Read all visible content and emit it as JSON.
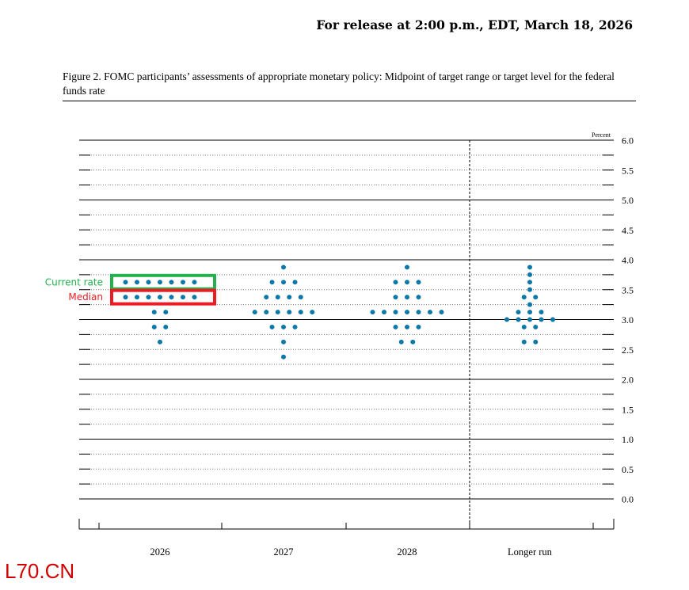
{
  "header": {
    "release": "For release at 2:00 p.m., EDT, March 18, 2026"
  },
  "caption": "Figure 2. FOMC participants’ assessments of appropriate monetary policy: Midpoint of target range or target level for the federal funds rate",
  "watermark": "L70.CN",
  "annotations": {
    "current_rate": {
      "label": "Current rate",
      "color": "#22b14c",
      "value": 3.625
    },
    "median": {
      "label": "Median",
      "color": "#ed1c24",
      "value": 3.375
    }
  },
  "chart_data": {
    "type": "scatter",
    "ylabel": "Percent",
    "ylim": [
      0,
      6
    ],
    "yticks": [
      "0.0",
      "0.5",
      "1.0",
      "1.5",
      "2.0",
      "2.5",
      "3.0",
      "3.5",
      "4.0",
      "4.5",
      "5.0",
      "5.5",
      "6.0"
    ],
    "categories": [
      "2026",
      "2027",
      "2028",
      "Longer run"
    ],
    "dot_color": "#0b78a8",
    "series": [
      {
        "category": "2026",
        "dots": [
          {
            "y": 3.625,
            "count": 7
          },
          {
            "y": 3.375,
            "count": 7
          },
          {
            "y": 3.125,
            "count": 2
          },
          {
            "y": 2.875,
            "count": 2
          },
          {
            "y": 2.625,
            "count": 1
          }
        ]
      },
      {
        "category": "2027",
        "dots": [
          {
            "y": 3.875,
            "count": 1
          },
          {
            "y": 3.625,
            "count": 3
          },
          {
            "y": 3.375,
            "count": 4
          },
          {
            "y": 3.125,
            "count": 6
          },
          {
            "y": 2.875,
            "count": 3
          },
          {
            "y": 2.625,
            "count": 1
          },
          {
            "y": 2.375,
            "count": 1
          }
        ]
      },
      {
        "category": "2028",
        "dots": [
          {
            "y": 3.875,
            "count": 1
          },
          {
            "y": 3.625,
            "count": 3
          },
          {
            "y": 3.375,
            "count": 3
          },
          {
            "y": 3.125,
            "count": 7
          },
          {
            "y": 2.875,
            "count": 3
          },
          {
            "y": 2.625,
            "count": 2
          }
        ]
      },
      {
        "category": "Longer run",
        "dots": [
          {
            "y": 3.875,
            "count": 1
          },
          {
            "y": 3.75,
            "count": 1
          },
          {
            "y": 3.625,
            "count": 1
          },
          {
            "y": 3.5,
            "count": 1
          },
          {
            "y": 3.375,
            "count": 2
          },
          {
            "y": 3.25,
            "count": 1
          },
          {
            "y": 3.125,
            "count": 3
          },
          {
            "y": 3.0,
            "count": 5
          },
          {
            "y": 2.875,
            "count": 2
          },
          {
            "y": 2.625,
            "count": 2
          }
        ]
      }
    ]
  }
}
